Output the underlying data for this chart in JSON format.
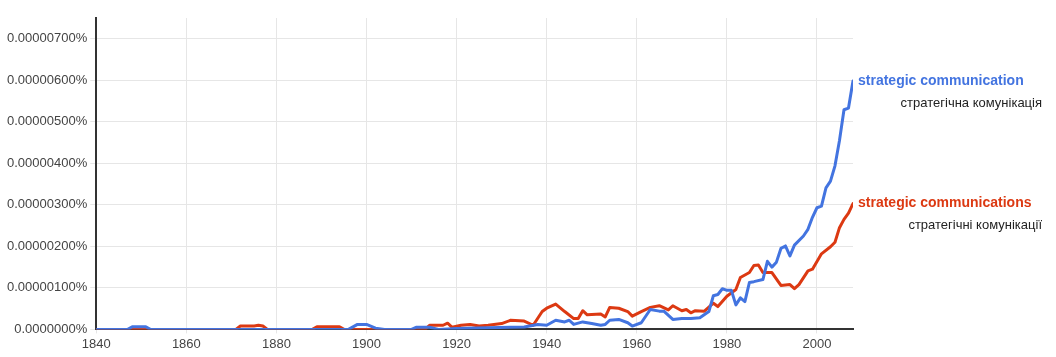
{
  "chart_data": {
    "type": "line",
    "xlim": [
      1840,
      2008
    ],
    "xticks": [
      1840,
      1860,
      1880,
      1900,
      1920,
      1940,
      1960,
      1980,
      2000
    ],
    "ylim": [
      0,
      7.5e-06
    ],
    "yticks": [
      {
        "value": 0,
        "label": "0.0000000%"
      },
      {
        "value": 1e-06,
        "label": "0.00000100%"
      },
      {
        "value": 2e-06,
        "label": "0.00000200%"
      },
      {
        "value": 3e-06,
        "label": "0.00000300%"
      },
      {
        "value": 4e-06,
        "label": "0.00000400%"
      },
      {
        "value": 5e-06,
        "label": "0.00000500%"
      },
      {
        "value": 6e-06,
        "label": "0.00000600%"
      },
      {
        "value": 7e-06,
        "label": "0.00000700%"
      }
    ],
    "grid": true,
    "legend": false,
    "marker": "none",
    "line_style": "solid",
    "series": [
      {
        "name": "strategic communication",
        "color": "#4374e0",
        "x": [
          1840,
          1847,
          1848,
          1851,
          1852,
          1896,
          1898,
          1900,
          1902,
          1904,
          1910,
          1911,
          1914,
          1916,
          1920,
          1927,
          1935,
          1938,
          1940,
          1942,
          1944,
          1945,
          1946,
          1948,
          1950,
          1952,
          1953,
          1954,
          1956,
          1958,
          1959,
          1961,
          1963,
          1965,
          1966,
          1968,
          1970,
          1972,
          1974,
          1976,
          1977,
          1978,
          1979,
          1980,
          1981,
          1982,
          1983,
          1984,
          1985,
          1986,
          1988,
          1989,
          1990,
          1991,
          1992,
          1993,
          1994,
          1995,
          1997,
          1998,
          1999,
          2000,
          2001,
          2002,
          2003,
          2004,
          2005,
          2006,
          2007,
          2008
        ],
        "values": [
          0,
          0,
          6.5e-08,
          6.5e-08,
          0,
          0,
          1.2e-07,
          1.2e-07,
          3e-08,
          0,
          0,
          5e-08,
          5e-08,
          0,
          2e-08,
          4e-08,
          6e-08,
          1.2e-07,
          1e-07,
          2.2e-07,
          1.8e-07,
          2.2e-07,
          1.2e-07,
          1.8e-07,
          1.4e-07,
          1e-07,
          1.2e-07,
          2.2e-07,
          2.4e-07,
          1.6e-07,
          8e-08,
          1.6e-07,
          4.8e-07,
          4.4e-07,
          4.4e-07,
          2.4e-07,
          2.6e-07,
          2.6e-07,
          2.8e-07,
          4.3e-07,
          8.1e-07,
          8.4e-07,
          9.8e-07,
          9.4e-07,
          9.4e-07,
          5.9e-07,
          7.6e-07,
          6.7e-07,
          1.13e-06,
          1.15e-06,
          1.2e-06,
          1.64e-06,
          1.5e-06,
          1.62e-06,
          1.95e-06,
          2.01e-06,
          1.77e-06,
          2.03e-06,
          2.25e-06,
          2.41e-06,
          2.7e-06,
          2.93e-06,
          2.97e-06,
          3.41e-06,
          3.57e-06,
          3.94e-06,
          4.55e-06,
          5.29e-06,
          5.33e-06,
          5.98e-06
        ]
      },
      {
        "name": "strategic communications",
        "color": "#dc3912",
        "x": [
          1840,
          1871,
          1872,
          1875,
          1876,
          1877,
          1878,
          1888,
          1889,
          1894,
          1895,
          1913,
          1914,
          1917,
          1918,
          1919,
          1921,
          1923,
          1925,
          1927,
          1930,
          1932,
          1935,
          1937,
          1939,
          1940,
          1942,
          1944,
          1946,
          1947,
          1948,
          1949,
          1952,
          1953,
          1954,
          1956,
          1958,
          1959,
          1961,
          1963,
          1965,
          1967,
          1968,
          1970,
          1971,
          1972,
          1973,
          1975,
          1977,
          1978,
          1980,
          1982,
          1983,
          1985,
          1986,
          1987,
          1988,
          1990,
          1992,
          1994,
          1995,
          1996,
          1998,
          1999,
          2001,
          2003,
          2004,
          2005,
          2006,
          2007,
          2008
        ],
        "values": [
          0,
          0,
          8e-08,
          8e-08,
          1e-07,
          8e-08,
          0,
          0,
          6.5e-08,
          6.5e-08,
          0,
          0,
          1e-07,
          1e-07,
          1.5e-07,
          5e-08,
          1e-07,
          1.2e-07,
          8e-08,
          1e-07,
          1.4e-07,
          2.2e-07,
          2e-07,
          1e-07,
          4.3e-07,
          5.1e-07,
          6.1e-07,
          4.3e-07,
          2.6e-07,
          2.6e-07,
          4.5e-07,
          3.5e-07,
          3.7e-07,
          3e-07,
          5.3e-07,
          5.1e-07,
          4.3e-07,
          3.2e-07,
          4.3e-07,
          5.3e-07,
          5.7e-07,
          4.7e-07,
          5.7e-07,
          4.5e-07,
          4.8e-07,
          4e-07,
          4.5e-07,
          4.4e-07,
          6.3e-07,
          5.5e-07,
          8e-07,
          9.6e-07,
          1.25e-06,
          1.37e-06,
          1.54e-06,
          1.55e-06,
          1.37e-06,
          1.37e-06,
          1.06e-06,
          1.08e-06,
          9.8e-07,
          1.08e-06,
          1.41e-06,
          1.45e-06,
          1.82e-06,
          1.99e-06,
          2.1e-06,
          2.45e-06,
          2.65e-06,
          2.8e-06,
          3.03e-06
        ]
      }
    ],
    "annotations": [
      "стратегічна комунікація",
      "стратегічні комунікації"
    ]
  }
}
